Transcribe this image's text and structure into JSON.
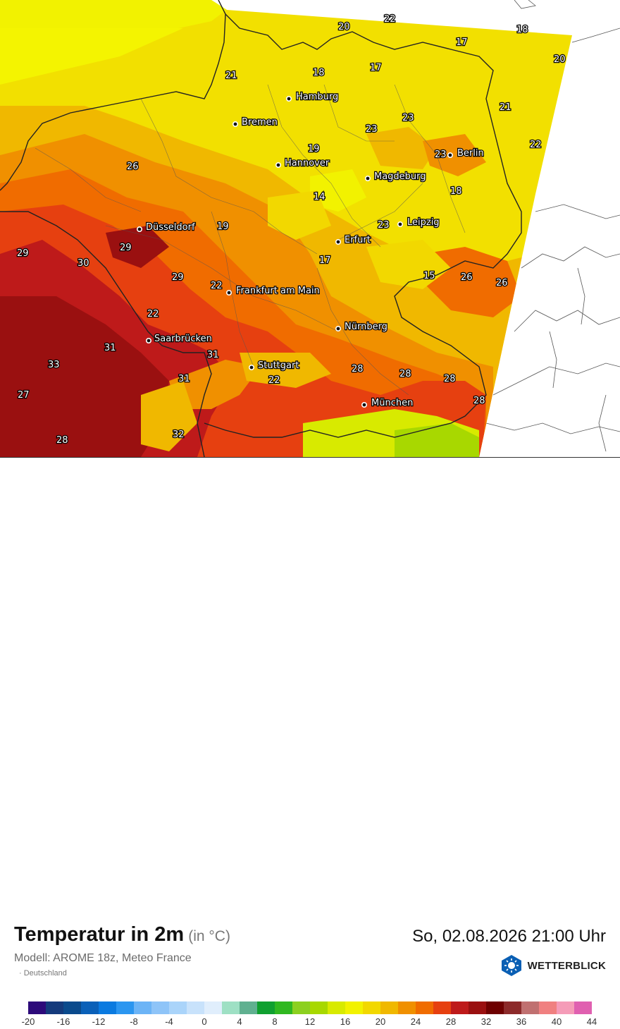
{
  "map": {
    "cities": [
      {
        "name": "Hamburg"
      },
      {
        "name": "Bremen"
      },
      {
        "name": "Hannover"
      },
      {
        "name": "Berlin"
      },
      {
        "name": "Magdeburg"
      },
      {
        "name": "Düsseldorf"
      },
      {
        "name": "Leipzig"
      },
      {
        "name": "Erfurt"
      },
      {
        "name": "Frankfurt am Main"
      },
      {
        "name": "Nürnberg"
      },
      {
        "name": "Saarbrücken"
      },
      {
        "name": "Stuttgart"
      },
      {
        "name": "München"
      }
    ],
    "values": [
      "22",
      "20",
      "18",
      "17",
      "20",
      "21",
      "18",
      "17",
      "21",
      "23",
      "23",
      "22",
      "19",
      "23",
      "26",
      "18",
      "14",
      "23",
      "19",
      "29",
      "29",
      "30",
      "17",
      "15",
      "26",
      "26",
      "29",
      "22",
      "22",
      "31",
      "31",
      "33",
      "28",
      "28",
      "28",
      "31",
      "22",
      "27",
      "28",
      "28",
      "32"
    ]
  },
  "header": {
    "title": "Temperatur in 2m",
    "unit": "(in °C)",
    "datetime": "So, 02.08.2026 21:00 Uhr",
    "model": "Modell: AROME 18z, Meteo France",
    "region": "· Deutschland",
    "brand": "WETTERBLICK",
    "brand_icon": "sun-logo-icon"
  },
  "legend": {
    "ticks": [
      "-20",
      "-16",
      "-12",
      "-8",
      "-4",
      "0",
      "4",
      "8",
      "12",
      "16",
      "20",
      "24",
      "28",
      "32",
      "36",
      "40",
      "44"
    ],
    "colors": [
      "#2d0a7a",
      "#143a7c",
      "#0a4a8c",
      "#0a60b8",
      "#0a7ae0",
      "#2b96f0",
      "#6cb4f6",
      "#8ec4f8",
      "#aad4fa",
      "#c8e2fb",
      "#e0eefc",
      "#9ee0c4",
      "#60b090",
      "#10a030",
      "#30b820",
      "#8cd020",
      "#a8d800",
      "#d8ea00",
      "#f2f200",
      "#f2d800",
      "#f0b800",
      "#f09000",
      "#f06c00",
      "#e64010",
      "#be1a1a",
      "#9a1010",
      "#6e0000",
      "#8c2a2a",
      "#c07070",
      "#f08080",
      "#f59cb8",
      "#e060b0"
    ]
  }
}
